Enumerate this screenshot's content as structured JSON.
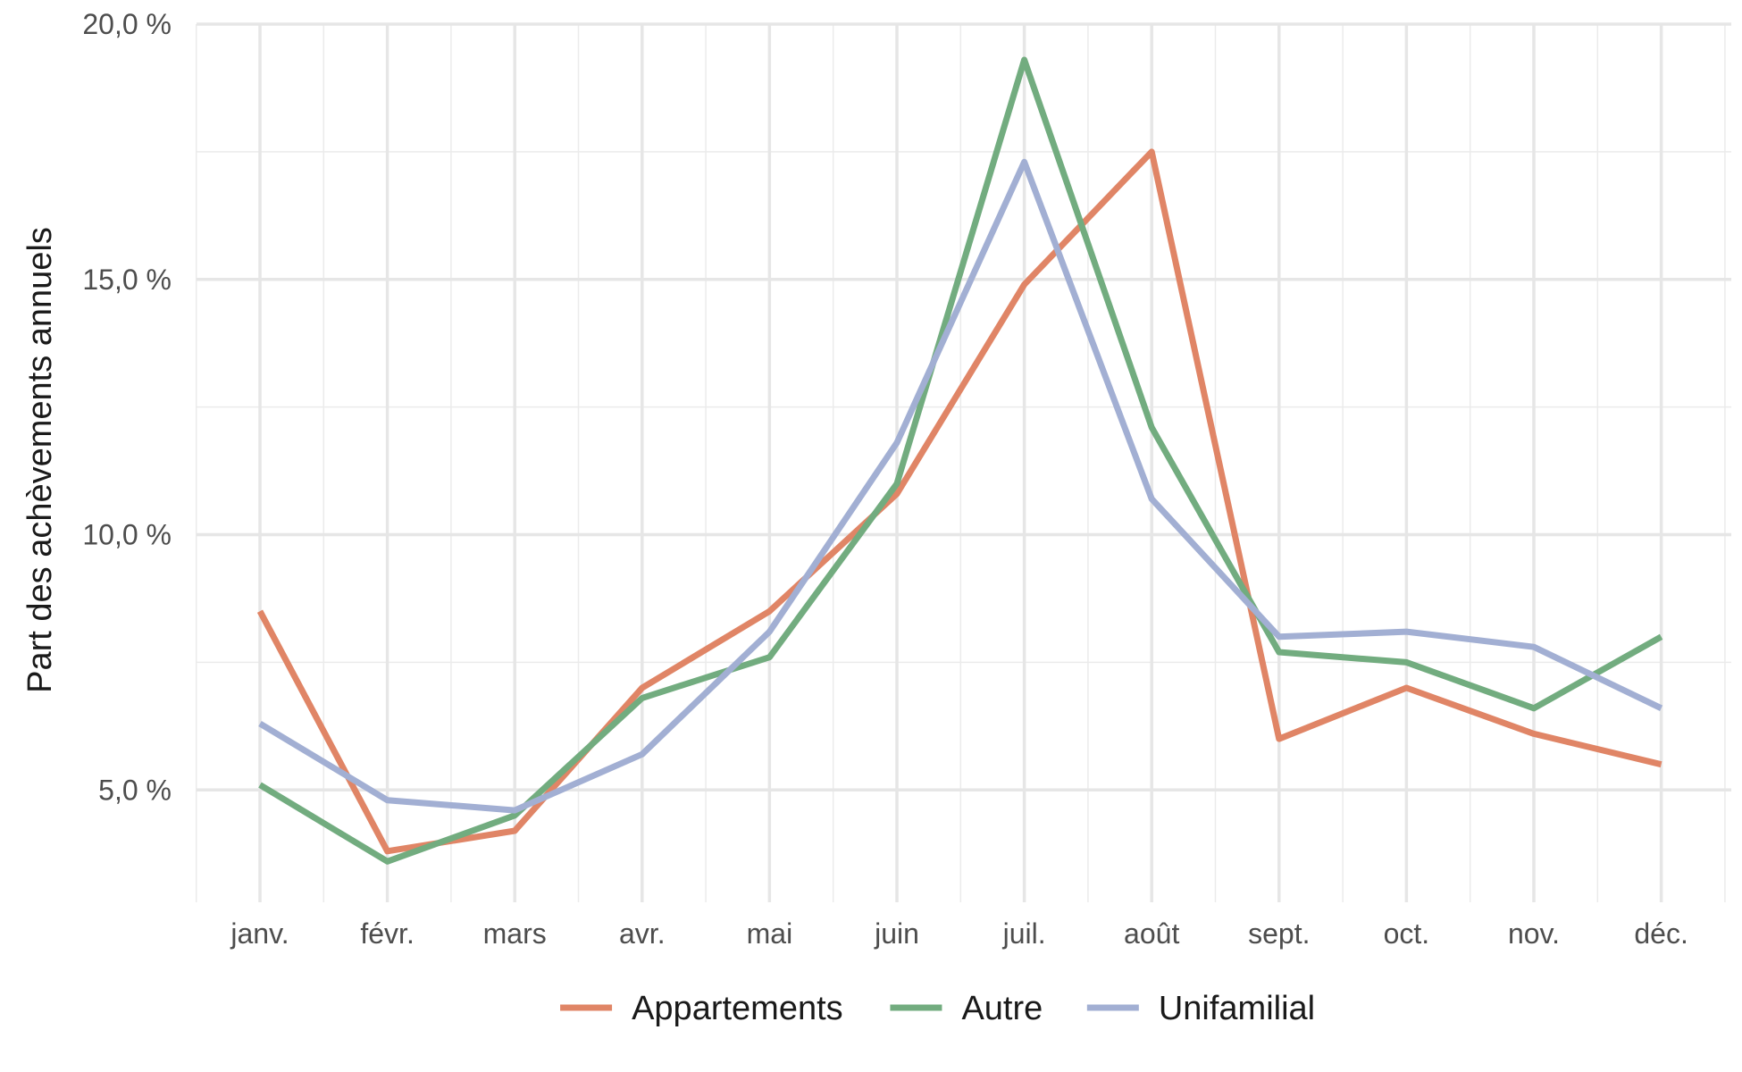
{
  "chart_data": {
    "type": "line",
    "title": "",
    "xlabel": "",
    "ylabel": "Part des achèvements annuels",
    "categories": [
      "janv.",
      "févr.",
      "mars",
      "avr.",
      "mai",
      "juin",
      "juil.",
      "août",
      "sept.",
      "oct.",
      "nov.",
      "déc."
    ],
    "ylim": [
      2.8,
      20.0
    ],
    "yticks": [
      5,
      10,
      15,
      20
    ],
    "ytick_labels": [
      "5,0 %",
      "10,0 %",
      "15,0 %",
      "20,0 %"
    ],
    "grid": true,
    "legend_position": "bottom",
    "series": [
      {
        "name": "Appartements",
        "color": "#E08566",
        "values": [
          8.5,
          3.8,
          4.2,
          7.0,
          8.5,
          10.8,
          14.9,
          17.5,
          6.0,
          7.0,
          6.1,
          5.5
        ]
      },
      {
        "name": "Autre",
        "color": "#72AC7F",
        "values": [
          5.1,
          3.6,
          4.5,
          6.8,
          7.6,
          11.0,
          19.3,
          12.1,
          7.7,
          7.5,
          6.6,
          8.0
        ]
      },
      {
        "name": "Unifamilial",
        "color": "#A2AFD3",
        "values": [
          6.3,
          4.8,
          4.6,
          5.7,
          8.1,
          11.8,
          17.3,
          10.7,
          8.0,
          8.1,
          7.8,
          6.6
        ]
      }
    ]
  }
}
